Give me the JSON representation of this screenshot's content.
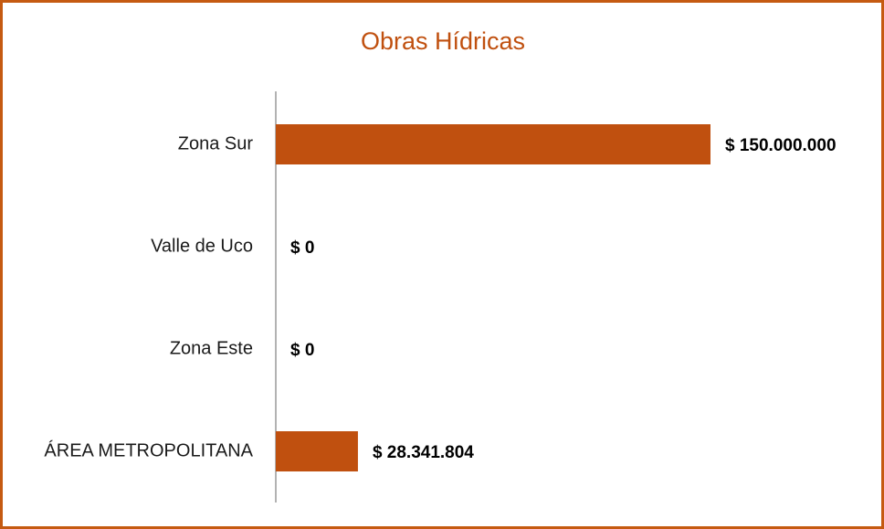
{
  "chart_data": {
    "type": "hbar",
    "title": "Obras Hídricas",
    "categories": [
      "Zona Sur",
      "Valle de Uco",
      "Zona Este",
      "ÁREA METROPOLITANA"
    ],
    "values": [
      150000000,
      0,
      0,
      28341804
    ],
    "value_labels": [
      "$ 150.000.000",
      "$ 0",
      "$ 0",
      "$ 28.341.804"
    ],
    "color": "#c0500f"
  }
}
